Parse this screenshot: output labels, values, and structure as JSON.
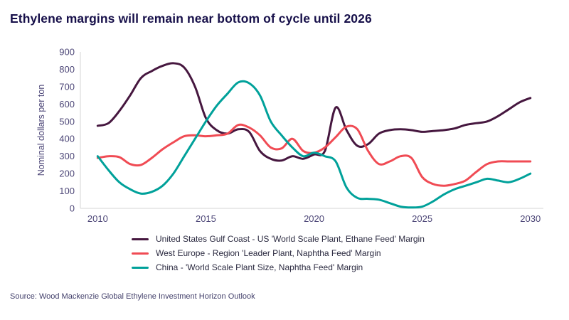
{
  "page": {
    "title": "Ethylene margins will remain near bottom of cycle until 2026",
    "source": "Source: Wood Mackenzie Global Ethylene Investment Horizon Outlook"
  },
  "colors": {
    "title_text": "#17104a",
    "axis_text": "#4c4677",
    "axis_line": "#d6d6d6",
    "source_text": "#43406b",
    "legend_text": "#2b2a40"
  },
  "chart_data": {
    "type": "line",
    "title": "Ethylene margins will remain near bottom of cycle until 2026",
    "xlabel": "",
    "ylabel": "Nominal dollars per ton",
    "xlim": [
      2009.2,
      2030.6
    ],
    "ylim": [
      0,
      900
    ],
    "yticks": [
      0,
      100,
      200,
      300,
      400,
      500,
      600,
      700,
      800,
      900
    ],
    "xticks": [
      2010,
      2015,
      2020,
      2025,
      2030
    ],
    "grid": false,
    "legend_position": "bottom",
    "series": [
      {
        "name": "United States Gulf Coast - US 'World Scale Plant, Ethane Feed' Margin",
        "color": "#46173f",
        "x": [
          2010,
          2010.5,
          2011,
          2011.5,
          2012,
          2012.5,
          2013,
          2013.5,
          2014,
          2014.5,
          2015,
          2015.5,
          2016,
          2016.5,
          2017,
          2017.5,
          2018,
          2018.5,
          2019,
          2019.5,
          2020,
          2020.5,
          2021,
          2021.5,
          2022,
          2022.5,
          2023,
          2023.5,
          2024,
          2024.5,
          2025,
          2025.5,
          2026,
          2026.5,
          2027,
          2027.5,
          2028,
          2028.5,
          2029,
          2029.5,
          2030
        ],
        "y": [
          475,
          490,
          560,
          650,
          750,
          790,
          820,
          835,
          810,
          700,
          520,
          450,
          430,
          455,
          440,
          330,
          285,
          275,
          300,
          285,
          310,
          330,
          580,
          450,
          360,
          370,
          430,
          450,
          455,
          450,
          440,
          445,
          450,
          460,
          480,
          490,
          500,
          530,
          570,
          610,
          635
        ]
      },
      {
        "name": "West Europe - Region 'Leader Plant, Naphtha Feed' Margin",
        "color": "#f04b54",
        "x": [
          2010,
          2010.5,
          2011,
          2011.5,
          2012,
          2012.5,
          2013,
          2013.5,
          2014,
          2014.5,
          2015,
          2015.5,
          2016,
          2016.5,
          2017,
          2017.5,
          2018,
          2018.5,
          2019,
          2019.5,
          2020,
          2020.5,
          2021,
          2021.5,
          2022,
          2022.5,
          2023,
          2023.5,
          2024,
          2024.5,
          2025,
          2025.5,
          2026,
          2026.5,
          2027,
          2027.5,
          2028,
          2028.5,
          2029,
          2029.5,
          2030
        ],
        "y": [
          290,
          300,
          295,
          255,
          250,
          290,
          340,
          380,
          415,
          420,
          415,
          420,
          430,
          480,
          465,
          420,
          350,
          345,
          400,
          330,
          320,
          350,
          410,
          470,
          455,
          330,
          255,
          270,
          300,
          290,
          180,
          140,
          130,
          140,
          160,
          210,
          255,
          270,
          270,
          270,
          270
        ]
      },
      {
        "name": "China - 'World Scale Plant Size, Naphtha Feed' Margin",
        "color": "#00a19a",
        "x": [
          2010,
          2010.5,
          2011,
          2011.5,
          2012,
          2012.5,
          2013,
          2013.5,
          2014,
          2014.5,
          2015,
          2015.5,
          2016,
          2016.5,
          2017,
          2017.5,
          2018,
          2018.5,
          2019,
          2019.5,
          2020,
          2020.5,
          2021,
          2021.5,
          2022,
          2022.5,
          2023,
          2023.5,
          2024,
          2024.5,
          2025,
          2025.5,
          2026,
          2026.5,
          2027,
          2027.5,
          2028,
          2028.5,
          2029,
          2029.5,
          2030
        ],
        "y": [
          300,
          220,
          150,
          110,
          85,
          95,
          130,
          200,
          300,
          400,
          500,
          590,
          660,
          725,
          720,
          650,
          500,
          420,
          350,
          300,
          320,
          300,
          270,
          120,
          60,
          55,
          50,
          30,
          10,
          5,
          10,
          40,
          80,
          110,
          130,
          150,
          170,
          160,
          150,
          170,
          200
        ]
      }
    ]
  }
}
